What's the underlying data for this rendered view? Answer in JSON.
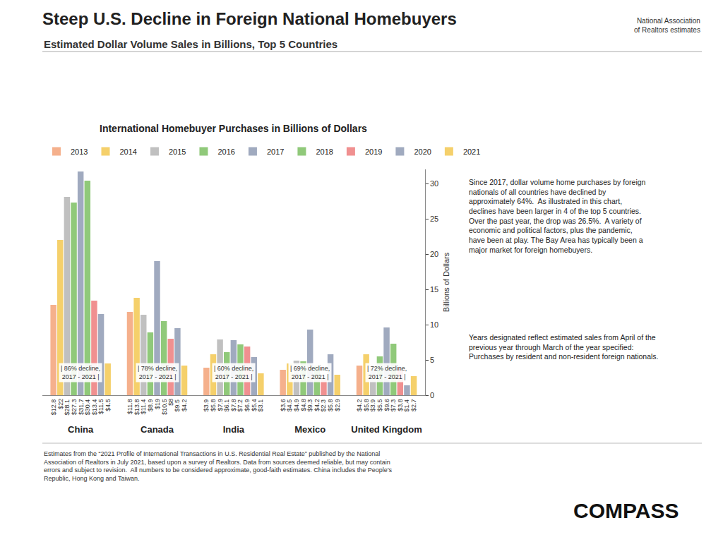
{
  "chart_data": {
    "type": "bar",
    "title": "Steep U.S. Decline in Foreign National Homebuyers",
    "subtitle": "Estimated Dollar Volume Sales in Billions, Top 5 Countries",
    "chart_title": "International Homebuyer Purchases in Billions of Dollars",
    "source": "National Association\nof Realtors estimates",
    "ylabel": "Billions of Dollars",
    "categories": [
      "China",
      "Canada",
      "India",
      "Mexico",
      "United Kingdom"
    ],
    "series": [
      {
        "name": "2013",
        "color": "#F5B08C",
        "values": [
          12.8,
          11.8,
          3.9,
          3.6,
          4.2
        ],
        "value_labels": [
          "$12.8",
          "$11.8",
          "$3.9",
          "$3.6",
          "$4.2"
        ]
      },
      {
        "name": "2014",
        "color": "#F5D06B",
        "values": [
          22.0,
          13.8,
          5.8,
          4.5,
          5.8
        ],
        "value_labels": [
          "$22",
          "$13.8",
          "$5.8",
          "$4.5",
          "$5.8"
        ]
      },
      {
        "name": "2015",
        "color": "#C0C0C0",
        "values": [
          28.1,
          11.4,
          7.9,
          4.9,
          3.9
        ],
        "value_labels": [
          "$28.1",
          "$11.4",
          "$7.9",
          "$4.9",
          "$3.9"
        ]
      },
      {
        "name": "2016",
        "color": "#90C97A",
        "values": [
          27.3,
          8.9,
          6.1,
          4.8,
          5.5
        ],
        "value_labels": [
          "$27.3",
          "$8.9",
          "$6.1",
          "$4.8",
          "$5.5"
        ]
      },
      {
        "name": "2017",
        "color": "#A0AABF",
        "values": [
          31.7,
          19.0,
          7.8,
          9.3,
          9.6
        ],
        "value_labels": [
          "$31.7",
          "$19",
          "$7.8",
          "$9.3",
          "$9.6"
        ]
      },
      {
        "name": "2018",
        "color": "#90C97A",
        "values": [
          30.4,
          10.5,
          7.2,
          4.2,
          7.3
        ],
        "value_labels": [
          "$30.4",
          "$10.5",
          "$7.2",
          "$4.2",
          "$7.3"
        ]
      },
      {
        "name": "2019",
        "color": "#F09090",
        "values": [
          13.4,
          8.0,
          6.9,
          2.3,
          3.8
        ],
        "value_labels": [
          "$13.4",
          "$8",
          "$6.9",
          "$2.3",
          "$3.8"
        ]
      },
      {
        "name": "2020",
        "color": "#A0AABF",
        "values": [
          11.5,
          9.5,
          5.4,
          5.8,
          1.4
        ],
        "value_labels": [
          "$11.5",
          "$9.5",
          "$5.4",
          "$5.8",
          "$1.4"
        ]
      },
      {
        "name": "2021",
        "color": "#F5D06B",
        "values": [
          4.5,
          4.2,
          3.1,
          2.9,
          2.7
        ],
        "value_labels": [
          "$4.5",
          "$4.2",
          "$3.1",
          "$2.9",
          "$2.7"
        ]
      }
    ],
    "annotations": [
      {
        "category": "China",
        "text": "| 86% decline,\n2017 - 2021 |"
      },
      {
        "category": "Canada",
        "text": "| 78% decline,\n2017 - 2021 |"
      },
      {
        "category": "India",
        "text": "| 60% decline,\n2017 - 2021 |"
      },
      {
        "category": "Mexico",
        "text": "| 69% decline,\n2017 - 2021 |"
      },
      {
        "category": "United Kingdom",
        "text": "| 72% decline,\n2017 - 2021 |"
      }
    ],
    "notes": [
      "Since 2017, dollar volume home purchases by foreign\nnationals of all countries have declined by\napproximately 64%.  As illustrated in this chart,\ndeclines have been larger in 4 of the top 5 countries.\nOver the past year, the drop was 26.5%.  A variety of\neconomic and political factors, plus the pandemic,\nhave been at play. The Bay Area has typically been a\nmajor market for foreign homebuyers.",
      "Years designated reflect estimated sales from April of the\nprevious year through March of the year specified:\nPurchases by resident and non-resident foreign nationals."
    ],
    "footer": "Estimates from the “2021 Profile of International Transactions in U.S. Residential Real Estate” published by the National\nAssociation of Realtors in July 2021, based upon a survey of Realtors. Data from sources deemed reliable, but may contain\nerrors and subject to revision.  All numbers to be considered approximate, good-faith estimates. China includes the People’s\nRepublic, Hong Kong and Taiwan.",
    "logo": "COMPASS",
    "ylim": [
      0,
      32
    ],
    "yticks": [
      0,
      5,
      10,
      15,
      20,
      25,
      30
    ],
    "grid": false,
    "legend": "top"
  }
}
